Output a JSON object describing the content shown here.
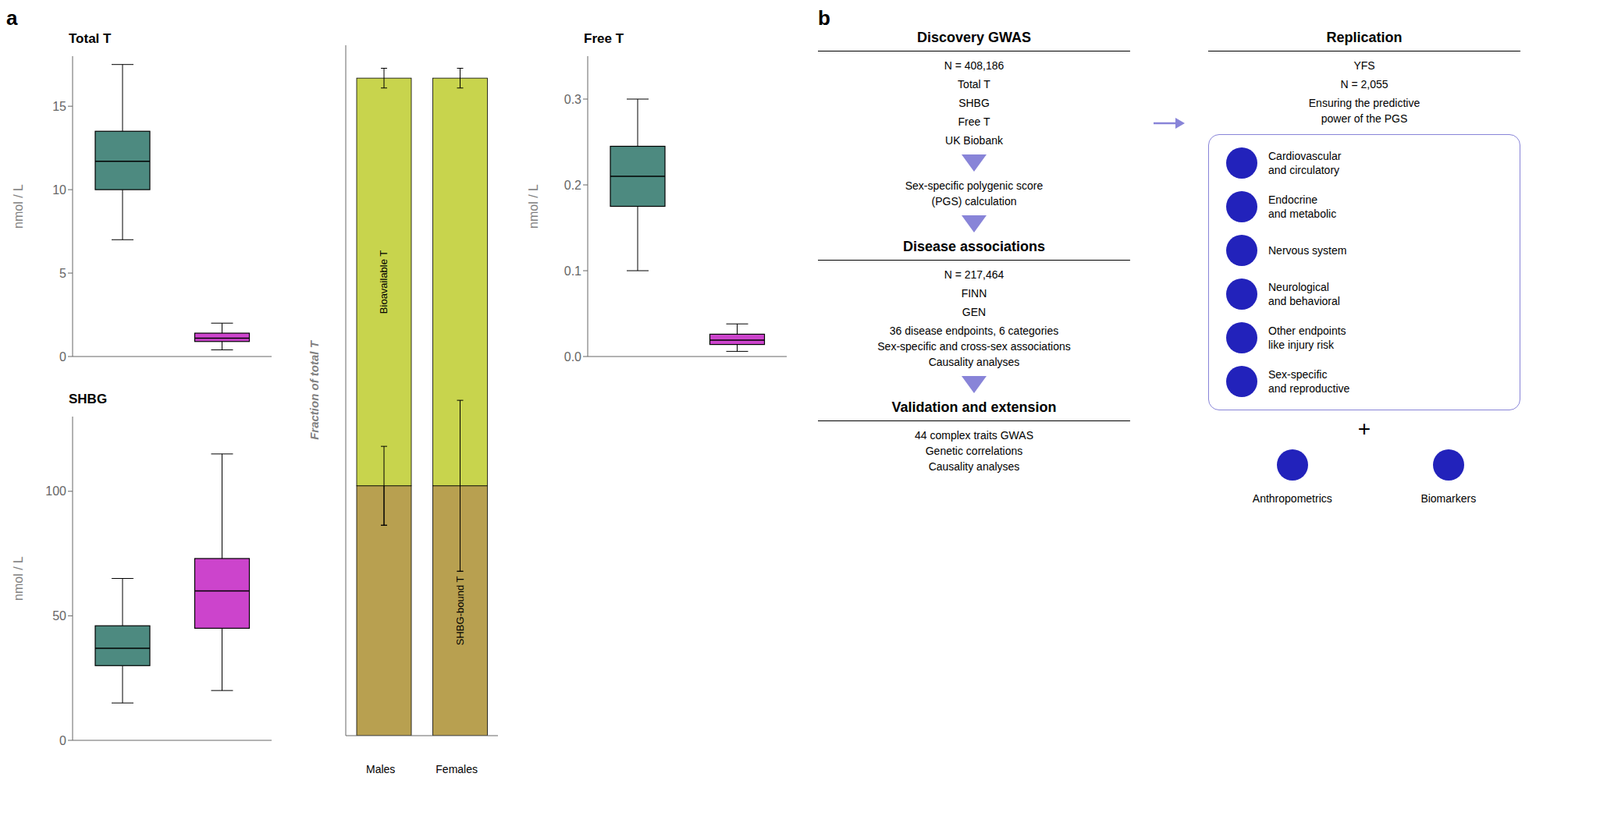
{
  "chart_data": [
    {
      "type": "box",
      "title": "Total T",
      "annotations": [
        "a"
      ],
      "ylabel": "nmol / L",
      "categories": [
        null,
        null
      ],
      "values": [
        {
          "q1": 10.0,
          "median": 11.7,
          "q3": 13.5,
          "whisker_low": 7.0,
          "whisker_high": 17.5
        },
        {
          "q1": 0.9,
          "median": 1.1,
          "q3": 1.4,
          "whisker_low": 0.4,
          "whisker_high": 2.0
        }
      ],
      "colors": [
        "#4d8a80",
        "#cc44cc"
      ],
      "ylim": [
        0,
        18
      ],
      "yticks": [
        0,
        5,
        10,
        15
      ],
      "grid": false
    },
    {
      "type": "box",
      "title": "SHBG",
      "ylabel": "nmol / L",
      "categories": [
        null,
        null
      ],
      "values": [
        {
          "q1": 30.0,
          "median": 37.0,
          "q3": 46.0,
          "whisker_low": 15.0,
          "whisker_high": 65.0
        },
        {
          "q1": 45.0,
          "median": 60.0,
          "q3": 73.0,
          "whisker_low": 20.0,
          "whisker_high": 115.0
        }
      ],
      "colors": [
        "#4d8a80",
        "#cc44cc"
      ],
      "ylim": [
        0,
        130
      ],
      "yticks": [
        0,
        50,
        100
      ],
      "grid": false
    },
    {
      "type": "bar",
      "stacked": true,
      "ylabel": "Fraction of total T",
      "annotations": [
        "Males",
        "Females"
      ],
      "categories": [
        null,
        null
      ],
      "series": [
        {
          "name": "SHBG-bound T",
          "color": "#b8a050",
          "values": [
            0.38,
            0.38
          ],
          "errors": [
            0.06,
            0.13
          ]
        },
        {
          "name": "Bioavailable T",
          "color": "#c8d44d",
          "values": [
            0.62,
            0.62
          ],
          "errors": [
            0.015,
            0.015
          ]
        }
      ],
      "ylim": [
        0,
        1.05
      ],
      "yticks": [],
      "tick_labels": false,
      "grid": false
    },
    {
      "type": "box",
      "title": "Free T",
      "ylabel": "nmol / L",
      "categories": [
        null,
        null
      ],
      "values": [
        {
          "q1": 0.175,
          "median": 0.21,
          "q3": 0.245,
          "whisker_low": 0.1,
          "whisker_high": 0.3
        },
        {
          "q1": 0.014,
          "median": 0.019,
          "q3": 0.026,
          "whisker_low": 0.006,
          "whisker_high": 0.038
        }
      ],
      "colors": [
        "#4d8a80",
        "#cc44cc"
      ],
      "ylim": [
        0.0,
        0.35
      ],
      "yticks": [
        {
          "value": 0.0,
          "label": "0.0"
        },
        0.1,
        0.2,
        0.3
      ],
      "grid": false
    },
    {
      "type": "diagram",
      "color": "#2222bb",
      "annotations": [
        [
          "b"
        ],
        [
          "Discovery GWAS",
          "N = 408,186",
          "Total T",
          "SHBG",
          "Free T",
          "UK Biobank"
        ],
        [
          "Sex-specific polygenic score\n(PGS) calculation"
        ],
        [
          "Disease associations",
          "N = 217,464",
          "FINN",
          "GEN",
          "36 disease endpoints, 6 categories\nSex-specific and cross-sex associations\nCausality analyses"
        ],
        [
          "Validation and extension",
          "44 complex traits GWAS\nGenetic correlations\nCausality analyses"
        ],
        [
          "Replication",
          "YFS",
          "N = 2,055",
          "Ensuring the predictive\npower of the PGS"
        ],
        [
          "Cardiovascular\nand circulatory",
          "Endocrine\nand metabolic",
          "Nervous system",
          "Neurological\nand behavioral",
          "Other endpoints\nlike injury risk",
          "Sex-specific\nand reproductive"
        ],
        [
          "+"
        ],
        [
          "Anthropometrics",
          "Biomarkers"
        ]
      ]
    }
  ]
}
